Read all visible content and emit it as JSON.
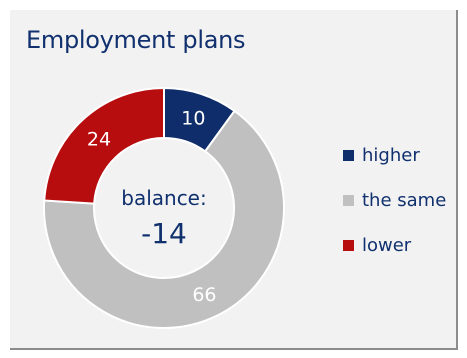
{
  "chart_data": {
    "type": "pie",
    "title": "Employment plans",
    "categories": [
      "higher",
      "the same",
      "lower"
    ],
    "values": [
      10,
      66,
      24
    ],
    "colors": [
      "#0f2d6b",
      "#c0c0c0",
      "#b70d0e"
    ],
    "label_colors": [
      "#ffffff",
      "#ffffff",
      "#ffffff"
    ],
    "center_label": "balance:",
    "center_value": "-14",
    "legend_position": "right"
  }
}
